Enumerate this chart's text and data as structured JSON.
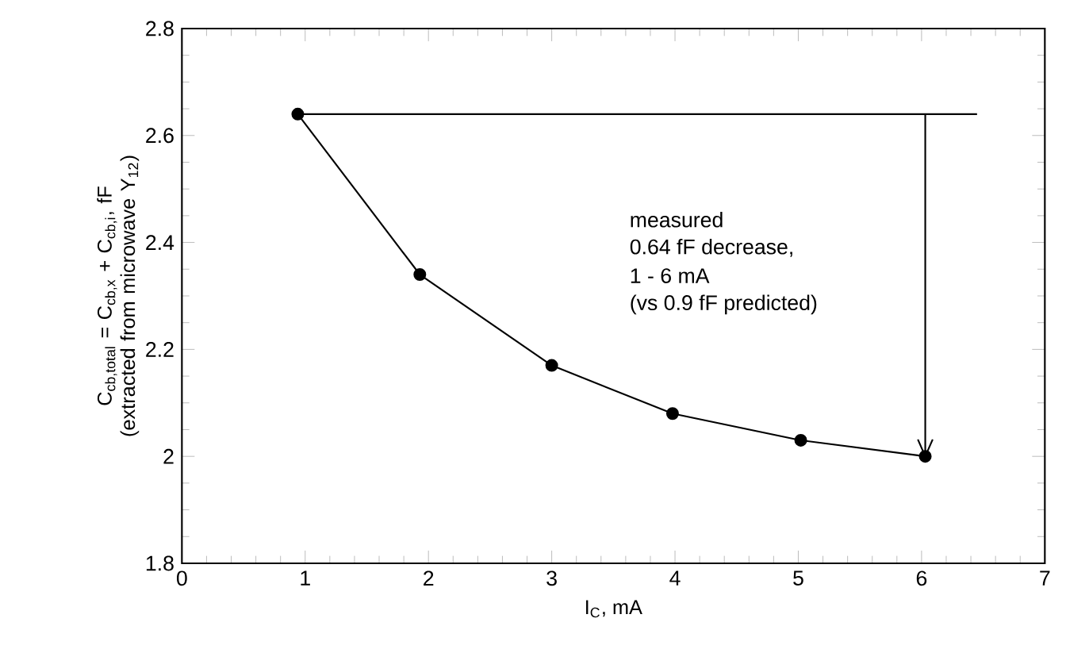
{
  "chart_data": {
    "type": "line",
    "xlabel": "I$_{C}$, mA",
    "ylabel": "C$_{cb,total}$ = C$_{cb,x}$ + C$_{cb,i}$, fF (extracted from microwave Y$_{12}$)",
    "series": [
      {
        "color": "#000000",
        "x": [
          0.94,
          1.93,
          3.0,
          3.98,
          5.02,
          6.03
        ],
        "values": [
          2.64,
          2.34,
          2.17,
          2.08,
          2.03,
          2.0
        ],
        "marker": "circle"
      },
      {
        "color": "#000000",
        "x": [
          0.94,
          6.45
        ],
        "values": [
          2.64,
          2.64
        ],
        "marker": "none"
      },
      {
        "color": "#000000",
        "x": [
          6.03,
          6.03
        ],
        "values": [
          2.64,
          2.0
        ],
        "marker": "none"
      }
    ],
    "annotations": [
      "measured",
      "0.64 fF decrease,",
      "1 - 6 mA",
      "(vs 0.9 fF predicted)"
    ],
    "xlim": [
      0,
      7
    ],
    "xticks": [
      0,
      1,
      2,
      3,
      4,
      5,
      6,
      7
    ],
    "ylim": [
      1.8,
      2.8
    ],
    "yticks": [
      1.8,
      {
        "value": 2.0,
        "label": "2"
      },
      2.2,
      2.4,
      2.6,
      2.8
    ],
    "line_style": "solid"
  }
}
